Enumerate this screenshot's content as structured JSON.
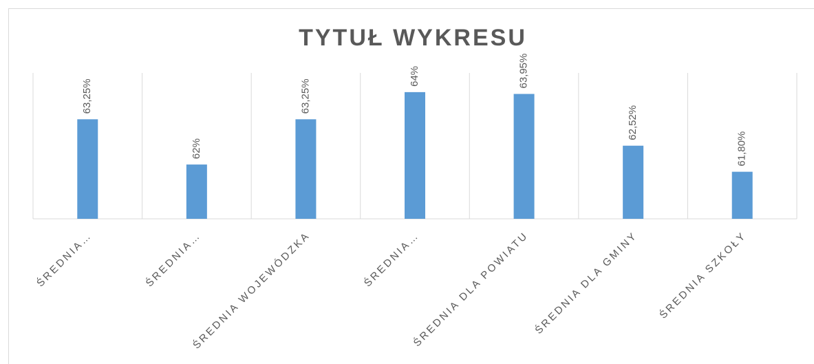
{
  "chart_data": {
    "type": "bar",
    "title": "TYTUŁ WYKRESU",
    "categories": [
      "ŚREDNIA…",
      "ŚREDNIA…",
      "ŚREDNIA WOJEWÓDZKA",
      "ŚREDNIA…",
      "ŚREDNIA DLA POWIATU",
      "ŚREDNIA DLA GMINY",
      "ŚREDNIA SZKOŁY"
    ],
    "values": [
      63.25,
      62,
      63.25,
      64,
      63.95,
      62.52,
      61.8
    ],
    "value_labels": [
      "63,25%",
      "62%",
      "63,25%",
      "64%",
      "63,95%",
      "62,52%",
      "61,80%"
    ],
    "color": "#5b9bd5",
    "ylim": [
      60.5,
      64.53
    ]
  }
}
